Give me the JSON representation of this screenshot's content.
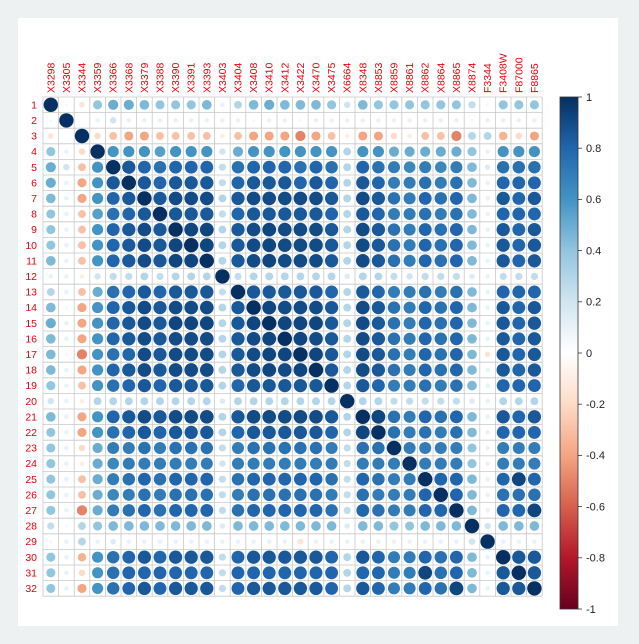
{
  "chart_data": {
    "type": "heatmap",
    "style": "corrplot-circle",
    "title": "",
    "column_labels": [
      "X3298",
      "X3305",
      "X3344",
      "X3359",
      "X3366",
      "X3368",
      "X3379",
      "X3388",
      "X3390",
      "X3391",
      "X3393",
      "X3403",
      "X3404",
      "X3408",
      "X3410",
      "X3412",
      "X3422",
      "X3470",
      "X3475",
      "X6664",
      "X8348",
      "X8853",
      "X8859",
      "X8861",
      "X8862",
      "X8864",
      "X8865",
      "X8874",
      "F3344",
      "F3408W",
      "F87000",
      "F8865"
    ],
    "row_labels": [
      "1",
      "2",
      "3",
      "4",
      "5",
      "6",
      "7",
      "8",
      "9",
      "10",
      "11",
      "12",
      "13",
      "14",
      "15",
      "16",
      "17",
      "18",
      "19",
      "20",
      "21",
      "22",
      "23",
      "24",
      "25",
      "26",
      "27",
      "28",
      "29",
      "30",
      "31",
      "32"
    ],
    "colorbar": {
      "range": [
        -1,
        1
      ],
      "ticks": [
        "1",
        "0.8",
        "0.6",
        "0.4",
        "0.2",
        "0",
        "-0.2",
        "-0.4",
        "-0.6",
        "-0.8",
        "-1"
      ],
      "colors": [
        "#67001F",
        "#B2182B",
        "#D6604D",
        "#F4A582",
        "#FDDBC7",
        "#FFFFFF",
        "#D1E5F0",
        "#92C5DE",
        "#4393C3",
        "#2166AC",
        "#053061"
      ]
    },
    "label_color": "#e8000b",
    "values": [
      [
        1.0,
        0.05,
        -0.15,
        0.4,
        0.5,
        0.5,
        0.45,
        0.4,
        0.4,
        0.4,
        0.45,
        0.1,
        0.3,
        0.45,
        0.5,
        0.45,
        0.45,
        0.45,
        0.4,
        0.2,
        0.45,
        0.4,
        0.4,
        0.4,
        0.4,
        0.4,
        0.4,
        0.25,
        0.05,
        0.4,
        0.4,
        0.4
      ],
      [
        0.05,
        1.0,
        0.0,
        0.1,
        0.2,
        0.1,
        0.1,
        0.1,
        0.1,
        0.1,
        0.1,
        0.1,
        0.1,
        0.05,
        0.1,
        0.1,
        0.05,
        0.1,
        0.1,
        0.1,
        0.1,
        0.1,
        0.1,
        0.1,
        0.1,
        0.1,
        0.1,
        0.05,
        0.1,
        0.1,
        0.1,
        0.1
      ],
      [
        -0.15,
        0.0,
        1.0,
        -0.2,
        -0.3,
        -0.4,
        -0.4,
        -0.3,
        -0.3,
        -0.3,
        -0.3,
        -0.1,
        -0.3,
        -0.4,
        -0.4,
        -0.4,
        -0.5,
        -0.4,
        -0.3,
        -0.1,
        -0.4,
        -0.4,
        -0.2,
        -0.1,
        -0.3,
        -0.3,
        -0.5,
        0.3,
        0.3,
        -0.35,
        -0.2,
        -0.4
      ],
      [
        0.4,
        0.1,
        -0.2,
        1.0,
        0.6,
        0.6,
        0.6,
        0.55,
        0.6,
        0.6,
        0.6,
        0.2,
        0.5,
        0.6,
        0.6,
        0.6,
        0.6,
        0.6,
        0.6,
        0.3,
        0.6,
        0.6,
        0.5,
        0.5,
        0.5,
        0.5,
        0.5,
        0.4,
        0.1,
        0.6,
        0.6,
        0.6
      ],
      [
        0.5,
        0.2,
        -0.3,
        0.6,
        1.0,
        0.85,
        0.8,
        0.75,
        0.8,
        0.8,
        0.8,
        0.25,
        0.75,
        0.8,
        0.8,
        0.8,
        0.75,
        0.8,
        0.75,
        0.3,
        0.8,
        0.75,
        0.7,
        0.65,
        0.7,
        0.65,
        0.7,
        0.45,
        0.15,
        0.75,
        0.75,
        0.75
      ],
      [
        0.5,
        0.1,
        -0.4,
        0.6,
        0.85,
        1.0,
        0.85,
        0.8,
        0.85,
        0.85,
        0.85,
        0.25,
        0.8,
        0.85,
        0.85,
        0.85,
        0.8,
        0.85,
        0.8,
        0.3,
        0.85,
        0.8,
        0.7,
        0.7,
        0.75,
        0.7,
        0.75,
        0.45,
        0.1,
        0.8,
        0.8,
        0.8
      ],
      [
        0.45,
        0.1,
        -0.4,
        0.6,
        0.8,
        0.85,
        1.0,
        0.85,
        0.9,
        0.9,
        0.9,
        0.3,
        0.85,
        0.9,
        0.9,
        0.9,
        0.9,
        0.9,
        0.85,
        0.3,
        0.9,
        0.85,
        0.75,
        0.7,
        0.8,
        0.75,
        0.8,
        0.45,
        0.1,
        0.85,
        0.8,
        0.85
      ],
      [
        0.4,
        0.1,
        -0.3,
        0.55,
        0.75,
        0.8,
        0.85,
        1.0,
        0.85,
        0.85,
        0.85,
        0.25,
        0.8,
        0.85,
        0.85,
        0.85,
        0.85,
        0.85,
        0.8,
        0.3,
        0.85,
        0.8,
        0.7,
        0.7,
        0.75,
        0.7,
        0.75,
        0.45,
        0.1,
        0.8,
        0.8,
        0.8
      ],
      [
        0.4,
        0.1,
        -0.3,
        0.6,
        0.8,
        0.85,
        0.9,
        0.85,
        1.0,
        0.92,
        0.92,
        0.3,
        0.85,
        0.9,
        0.92,
        0.9,
        0.9,
        0.9,
        0.85,
        0.3,
        0.9,
        0.85,
        0.75,
        0.7,
        0.8,
        0.75,
        0.8,
        0.45,
        0.1,
        0.85,
        0.8,
        0.85
      ],
      [
        0.4,
        0.1,
        -0.3,
        0.6,
        0.8,
        0.85,
        0.9,
        0.85,
        0.92,
        1.0,
        0.92,
        0.3,
        0.85,
        0.9,
        0.92,
        0.9,
        0.9,
        0.9,
        0.85,
        0.3,
        0.9,
        0.85,
        0.75,
        0.7,
        0.8,
        0.75,
        0.8,
        0.45,
        0.1,
        0.85,
        0.8,
        0.85
      ],
      [
        0.45,
        0.1,
        -0.3,
        0.6,
        0.8,
        0.85,
        0.9,
        0.85,
        0.92,
        0.92,
        1.0,
        0.3,
        0.85,
        0.9,
        0.92,
        0.9,
        0.9,
        0.9,
        0.85,
        0.3,
        0.9,
        0.85,
        0.75,
        0.7,
        0.8,
        0.75,
        0.8,
        0.45,
        0.1,
        0.85,
        0.8,
        0.85
      ],
      [
        0.1,
        0.1,
        -0.1,
        0.2,
        0.25,
        0.25,
        0.3,
        0.25,
        0.3,
        0.3,
        0.3,
        1.0,
        0.25,
        0.3,
        0.3,
        0.3,
        0.3,
        0.3,
        0.3,
        0.15,
        0.3,
        0.3,
        0.25,
        0.2,
        0.25,
        0.25,
        0.25,
        0.15,
        0.1,
        0.25,
        0.25,
        0.25
      ],
      [
        0.3,
        0.1,
        -0.3,
        0.5,
        0.75,
        0.8,
        0.85,
        0.8,
        0.85,
        0.85,
        0.85,
        0.25,
        1.0,
        0.85,
        0.85,
        0.85,
        0.85,
        0.85,
        0.8,
        0.3,
        0.85,
        0.8,
        0.7,
        0.7,
        0.75,
        0.7,
        0.75,
        0.45,
        0.1,
        0.8,
        0.8,
        0.8
      ],
      [
        0.45,
        0.05,
        -0.4,
        0.6,
        0.8,
        0.85,
        0.9,
        0.85,
        0.9,
        0.9,
        0.9,
        0.3,
        0.85,
        1.0,
        0.92,
        0.9,
        0.9,
        0.9,
        0.85,
        0.3,
        0.9,
        0.85,
        0.75,
        0.7,
        0.8,
        0.75,
        0.8,
        0.45,
        0.1,
        0.85,
        0.8,
        0.85
      ],
      [
        0.5,
        0.1,
        -0.4,
        0.6,
        0.8,
        0.85,
        0.9,
        0.85,
        0.92,
        0.92,
        0.92,
        0.3,
        0.85,
        0.92,
        1.0,
        0.92,
        0.92,
        0.92,
        0.85,
        0.3,
        0.9,
        0.85,
        0.75,
        0.7,
        0.8,
        0.75,
        0.8,
        0.45,
        0.1,
        0.85,
        0.8,
        0.85
      ],
      [
        0.45,
        0.1,
        -0.4,
        0.6,
        0.8,
        0.85,
        0.9,
        0.85,
        0.9,
        0.9,
        0.9,
        0.3,
        0.85,
        0.9,
        0.92,
        1.0,
        0.92,
        0.9,
        0.85,
        0.3,
        0.9,
        0.85,
        0.75,
        0.7,
        0.8,
        0.75,
        0.8,
        0.45,
        0.1,
        0.85,
        0.8,
        0.85
      ],
      [
        0.45,
        0.05,
        -0.5,
        0.6,
        0.75,
        0.8,
        0.9,
        0.85,
        0.9,
        0.9,
        0.9,
        0.3,
        0.85,
        0.9,
        0.92,
        0.92,
        1.0,
        0.92,
        0.85,
        0.3,
        0.9,
        0.85,
        0.75,
        0.7,
        0.8,
        0.75,
        0.8,
        0.45,
        -0.15,
        0.85,
        0.8,
        0.85
      ],
      [
        0.45,
        0.1,
        -0.4,
        0.6,
        0.8,
        0.85,
        0.9,
        0.85,
        0.9,
        0.9,
        0.9,
        0.3,
        0.85,
        0.9,
        0.92,
        0.9,
        0.92,
        1.0,
        0.85,
        0.3,
        0.9,
        0.85,
        0.75,
        0.7,
        0.8,
        0.75,
        0.8,
        0.45,
        0.1,
        0.85,
        0.8,
        0.85
      ],
      [
        0.4,
        0.1,
        -0.3,
        0.6,
        0.75,
        0.8,
        0.85,
        0.8,
        0.85,
        0.85,
        0.85,
        0.3,
        0.8,
        0.85,
        0.85,
        0.85,
        0.85,
        0.85,
        1.0,
        0.3,
        0.85,
        0.8,
        0.7,
        0.7,
        0.75,
        0.7,
        0.75,
        0.45,
        0.1,
        0.8,
        0.8,
        0.8
      ],
      [
        0.2,
        0.1,
        -0.1,
        0.3,
        0.3,
        0.3,
        0.3,
        0.3,
        0.3,
        0.3,
        0.3,
        0.15,
        0.3,
        0.3,
        0.3,
        0.3,
        0.3,
        0.3,
        0.3,
        1.0,
        0.3,
        0.3,
        0.25,
        0.25,
        0.25,
        0.25,
        0.25,
        0.15,
        0.1,
        0.3,
        0.3,
        0.3
      ],
      [
        0.45,
        0.1,
        -0.4,
        0.6,
        0.8,
        0.85,
        0.9,
        0.85,
        0.9,
        0.9,
        0.9,
        0.3,
        0.85,
        0.9,
        0.9,
        0.9,
        0.9,
        0.9,
        0.85,
        0.3,
        1.0,
        0.92,
        0.75,
        0.7,
        0.8,
        0.75,
        0.8,
        0.45,
        0.1,
        0.85,
        0.8,
        0.85
      ],
      [
        0.4,
        0.1,
        -0.4,
        0.6,
        0.75,
        0.8,
        0.85,
        0.8,
        0.85,
        0.85,
        0.85,
        0.3,
        0.8,
        0.85,
        0.85,
        0.85,
        0.85,
        0.85,
        0.8,
        0.3,
        0.92,
        1.0,
        0.75,
        0.7,
        0.75,
        0.7,
        0.75,
        0.45,
        0.1,
        0.8,
        0.8,
        0.8
      ],
      [
        0.4,
        0.1,
        -0.2,
        0.5,
        0.7,
        0.7,
        0.75,
        0.7,
        0.75,
        0.75,
        0.75,
        0.25,
        0.7,
        0.75,
        0.75,
        0.75,
        0.75,
        0.75,
        0.7,
        0.25,
        0.75,
        0.75,
        1.0,
        0.7,
        0.7,
        0.7,
        0.7,
        0.4,
        0.1,
        0.7,
        0.7,
        0.7
      ],
      [
        0.4,
        0.1,
        -0.1,
        0.5,
        0.65,
        0.7,
        0.7,
        0.7,
        0.7,
        0.7,
        0.7,
        0.2,
        0.7,
        0.7,
        0.7,
        0.7,
        0.7,
        0.7,
        0.7,
        0.25,
        0.7,
        0.7,
        0.7,
        1.0,
        0.7,
        0.7,
        0.7,
        0.4,
        0.1,
        0.7,
        0.7,
        0.7
      ],
      [
        0.4,
        0.1,
        -0.3,
        0.5,
        0.7,
        0.75,
        0.8,
        0.75,
        0.8,
        0.8,
        0.8,
        0.25,
        0.75,
        0.8,
        0.8,
        0.8,
        0.8,
        0.8,
        0.75,
        0.25,
        0.8,
        0.75,
        0.7,
        0.7,
        1.0,
        0.8,
        0.8,
        0.45,
        0.1,
        0.8,
        0.92,
        0.8
      ],
      [
        0.4,
        0.1,
        -0.3,
        0.5,
        0.65,
        0.7,
        0.75,
        0.7,
        0.75,
        0.75,
        0.75,
        0.25,
        0.7,
        0.75,
        0.75,
        0.75,
        0.75,
        0.75,
        0.7,
        0.25,
        0.75,
        0.7,
        0.7,
        0.7,
        0.8,
        1.0,
        0.8,
        0.45,
        0.1,
        0.75,
        0.75,
        0.75
      ],
      [
        0.4,
        0.1,
        -0.5,
        0.5,
        0.7,
        0.75,
        0.8,
        0.75,
        0.8,
        0.8,
        0.8,
        0.25,
        0.75,
        0.8,
        0.8,
        0.8,
        0.8,
        0.8,
        0.75,
        0.25,
        0.8,
        0.75,
        0.7,
        0.7,
        0.8,
        0.8,
        1.0,
        0.45,
        0.1,
        0.8,
        0.8,
        0.92
      ],
      [
        0.25,
        0.05,
        0.3,
        0.4,
        0.45,
        0.45,
        0.45,
        0.45,
        0.45,
        0.45,
        0.45,
        0.15,
        0.45,
        0.45,
        0.45,
        0.45,
        0.45,
        0.45,
        0.45,
        0.15,
        0.45,
        0.45,
        0.4,
        0.4,
        0.45,
        0.45,
        0.45,
        1.0,
        0.2,
        0.45,
        0.45,
        0.45
      ],
      [
        0.05,
        0.1,
        0.3,
        0.1,
        0.15,
        0.1,
        0.1,
        0.1,
        0.1,
        0.1,
        0.1,
        0.1,
        0.1,
        0.1,
        0.1,
        0.1,
        -0.15,
        0.1,
        0.1,
        0.1,
        0.1,
        0.1,
        0.1,
        0.1,
        0.1,
        0.1,
        0.1,
        0.2,
        1.0,
        0.1,
        0.1,
        0.1
      ],
      [
        0.4,
        0.1,
        -0.35,
        0.6,
        0.75,
        0.8,
        0.85,
        0.8,
        0.85,
        0.85,
        0.85,
        0.25,
        0.8,
        0.85,
        0.85,
        0.85,
        0.85,
        0.85,
        0.8,
        0.3,
        0.85,
        0.8,
        0.7,
        0.7,
        0.8,
        0.75,
        0.8,
        0.45,
        0.1,
        1.0,
        0.85,
        0.85
      ],
      [
        0.4,
        0.1,
        -0.2,
        0.6,
        0.75,
        0.8,
        0.8,
        0.8,
        0.8,
        0.8,
        0.8,
        0.25,
        0.8,
        0.8,
        0.8,
        0.8,
        0.8,
        0.8,
        0.8,
        0.3,
        0.8,
        0.8,
        0.7,
        0.7,
        0.92,
        0.75,
        0.8,
        0.45,
        0.1,
        0.85,
        1.0,
        0.85
      ],
      [
        0.4,
        0.1,
        -0.4,
        0.6,
        0.75,
        0.8,
        0.85,
        0.8,
        0.85,
        0.85,
        0.85,
        0.25,
        0.8,
        0.85,
        0.85,
        0.85,
        0.85,
        0.85,
        0.8,
        0.3,
        0.85,
        0.8,
        0.7,
        0.7,
        0.8,
        0.75,
        0.92,
        0.45,
        0.1,
        0.85,
        0.85,
        1.0
      ]
    ]
  }
}
